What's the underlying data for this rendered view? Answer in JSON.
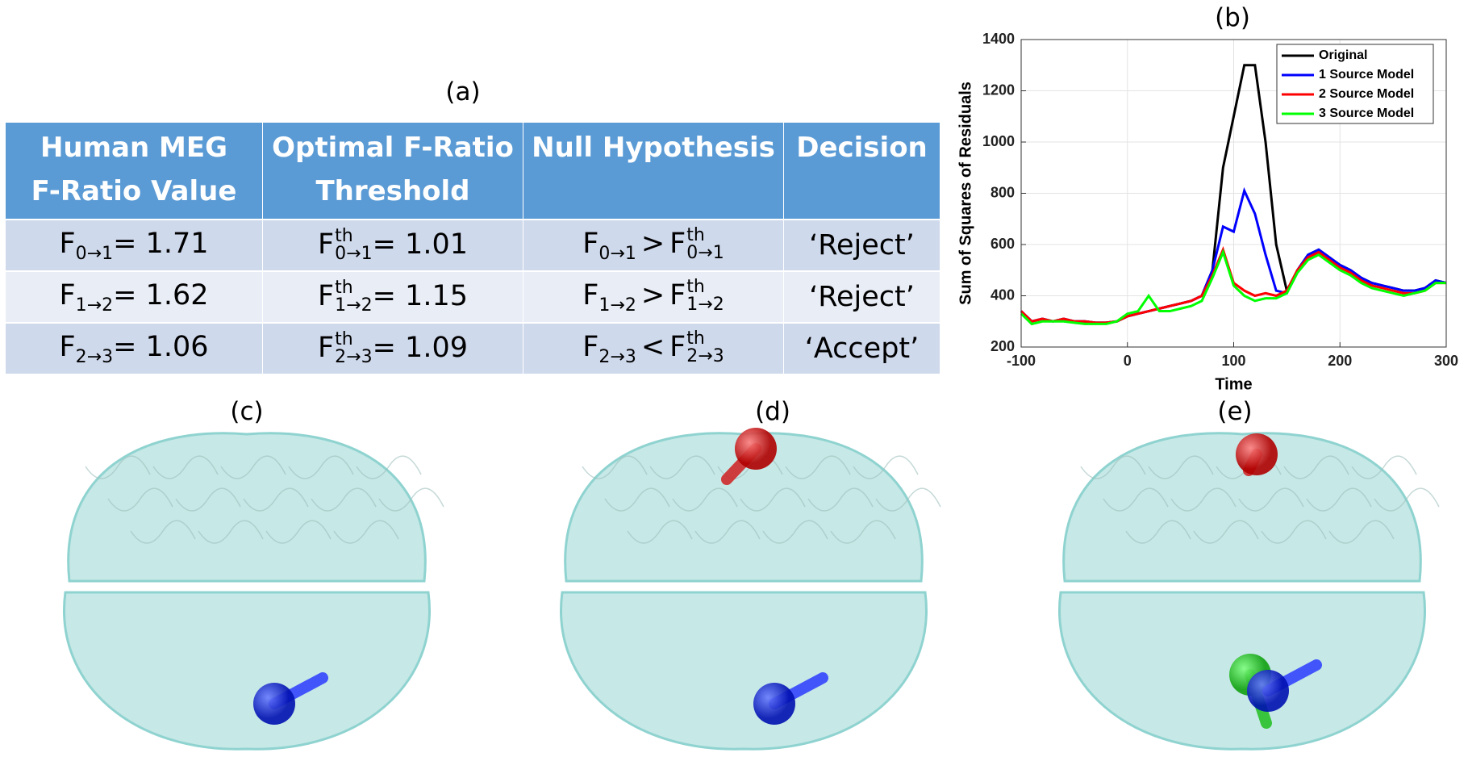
{
  "panel_labels": [
    "(a)",
    "(b)",
    "(c)",
    "(d)",
    "(e)"
  ],
  "table": {
    "headers": [
      [
        "Human MEG",
        "F-Ratio Value"
      ],
      [
        "Optimal F-Ratio",
        "Threshold"
      ],
      [
        "Null Hypothesis"
      ],
      [
        "Decision"
      ]
    ],
    "rows": [
      [
        [
          {
            "text": "F"
          },
          {
            "sub": "0→1"
          },
          {
            "text": "= 1.71"
          }
        ],
        [
          {
            "text": "F"
          },
          {
            "sup": "th",
            "sub": "0→1"
          },
          {
            "text": "= 1.01"
          }
        ],
        [
          {
            "text": "F"
          },
          {
            "sub": "0→1"
          },
          {
            "text": ">"
          },
          {
            "text": "F"
          },
          {
            "sup": "th",
            "sub": "0→1"
          }
        ],
        [
          {
            "text": "‘Reject’"
          }
        ]
      ],
      [
        [
          {
            "text": "F"
          },
          {
            "sub": "1→2"
          },
          {
            "text": "= 1.62"
          }
        ],
        [
          {
            "text": "F"
          },
          {
            "sup": "th",
            "sub": "1→2"
          },
          {
            "text": "= 1.15"
          }
        ],
        [
          {
            "text": "F"
          },
          {
            "sub": "1→2"
          },
          {
            "text": ">"
          },
          {
            "text": "F"
          },
          {
            "sup": "th",
            "sub": "1→2"
          }
        ],
        [
          {
            "text": "‘Reject’"
          }
        ]
      ],
      [
        [
          {
            "text": "F"
          },
          {
            "sub": "2→3"
          },
          {
            "text": "= 1.06"
          }
        ],
        [
          {
            "text": "F"
          },
          {
            "sup": "th",
            "sub": "2→3"
          },
          {
            "text": "= 1.09"
          }
        ],
        [
          {
            "text": "F"
          },
          {
            "sub": "2→3"
          },
          {
            "text": "<"
          },
          {
            "text": "F"
          },
          {
            "sup": "th",
            "sub": "2→3"
          }
        ],
        [
          {
            "text": "‘Accept’"
          }
        ]
      ]
    ]
  },
  "chart_data": {
    "type": "line",
    "xlabel": "Time",
    "ylabel": "Sum of Squares of Residuals",
    "x": [
      -100,
      -90,
      -80,
      -70,
      -60,
      -50,
      -40,
      -30,
      -20,
      -10,
      0,
      10,
      20,
      30,
      40,
      50,
      60,
      70,
      80,
      90,
      100,
      110,
      120,
      130,
      140,
      150,
      160,
      170,
      180,
      190,
      200,
      210,
      220,
      230,
      240,
      250,
      260,
      270,
      280,
      290,
      300
    ],
    "series": [
      {
        "name": "Original",
        "color": "#000000",
        "values": [
          340,
          300,
          310,
          300,
          310,
          300,
          300,
          295,
          295,
          300,
          320,
          330,
          340,
          350,
          360,
          370,
          380,
          400,
          500,
          900,
          1100,
          1300,
          1300,
          1000,
          600,
          420,
          500,
          560,
          580,
          550,
          520,
          500,
          470,
          450,
          440,
          430,
          420,
          420,
          430,
          460,
          450
        ]
      },
      {
        "name": "1 Source Model",
        "color": "#0000ff",
        "values": [
          340,
          300,
          310,
          300,
          310,
          300,
          300,
          295,
          295,
          300,
          320,
          330,
          340,
          350,
          360,
          370,
          380,
          400,
          500,
          670,
          650,
          810,
          720,
          560,
          420,
          410,
          500,
          560,
          580,
          550,
          520,
          500,
          470,
          450,
          440,
          430,
          420,
          420,
          430,
          460,
          450
        ]
      },
      {
        "name": "2 Source Model",
        "color": "#ff0000",
        "values": [
          340,
          300,
          310,
          300,
          310,
          300,
          300,
          295,
          295,
          300,
          320,
          330,
          340,
          350,
          360,
          370,
          380,
          400,
          480,
          580,
          450,
          420,
          400,
          410,
          400,
          420,
          500,
          550,
          570,
          540,
          510,
          490,
          460,
          440,
          430,
          420,
          410,
          410,
          420,
          450,
          450
        ]
      },
      {
        "name": "3 Source Model",
        "color": "#00ff00",
        "values": [
          330,
          290,
          300,
          300,
          300,
          295,
          290,
          290,
          290,
          300,
          330,
          340,
          400,
          340,
          340,
          350,
          360,
          380,
          470,
          570,
          440,
          400,
          380,
          390,
          390,
          410,
          490,
          540,
          560,
          530,
          500,
          480,
          450,
          430,
          420,
          410,
          400,
          410,
          420,
          450,
          450
        ]
      }
    ],
    "xlim": [
      -100,
      300
    ],
    "xticks": [
      -100,
      0,
      100,
      200,
      300
    ],
    "ylim": [
      200,
      1400
    ],
    "yticks": [
      200,
      400,
      600,
      800,
      1000,
      1200,
      1400
    ],
    "grid": true,
    "legend": "upper right"
  }
}
